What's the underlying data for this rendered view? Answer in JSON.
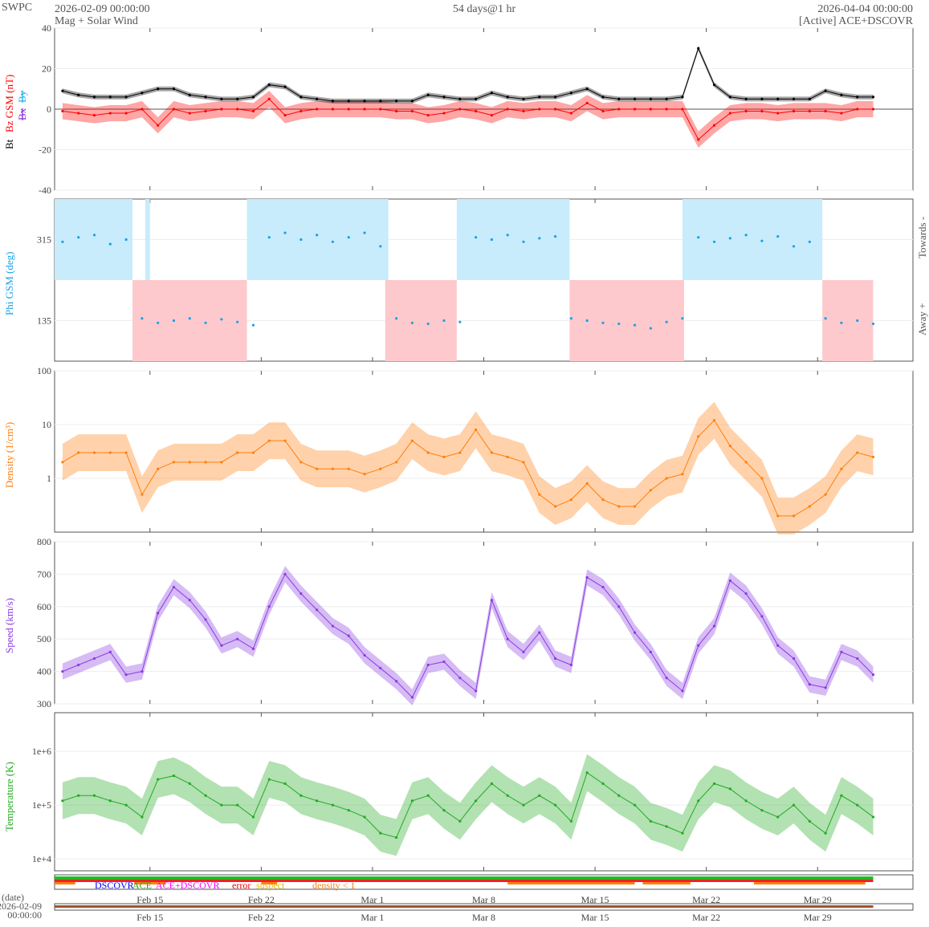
{
  "header": {
    "org": "SWPC",
    "start": "2026-02-09 00:00:00",
    "subtitle": "Mag + Solar Wind",
    "span": "54 days@1 hr",
    "end": "2026-04-04 00:00:00",
    "source": "[Active] ACE+DSCOVR"
  },
  "colors": {
    "bt": "#000000",
    "bz": "#ff0000",
    "bx": "#8a2be2",
    "by": "#1ab2f0",
    "phi": "#1aa0e8",
    "density": "#ff7f0e",
    "speed": "#8a3be2",
    "temp": "#22aa22"
  },
  "labels": {
    "bt": "Bt",
    "bz": "Bz GSM (nT)",
    "bx": "Bx",
    "by": "By",
    "phi": "Phi GSM (deg)",
    "towards": "Towards -",
    "away": "Away +",
    "density": "Density (1/cm³)",
    "speed": "Speed (km/s)",
    "temp": "Temperature (K)",
    "date": "(date)",
    "date_start_day": "2026-02-09",
    "date_start_time": "00:00:00"
  },
  "legend": {
    "dscovr": "DSCOVR",
    "ace": "ACE",
    "both": "ACE+DSCOVR",
    "error": "error",
    "suspect": "suspect",
    "density": "density < 1"
  },
  "chart_data": {
    "type": "line",
    "x_unit": "days since 2026-02-09",
    "x_range": [
      0,
      54
    ],
    "x_ticks": [
      {
        "day": 6,
        "label": "Feb 15"
      },
      {
        "day": 13,
        "label": "Feb 22"
      },
      {
        "day": 20,
        "label": "Mar 1"
      },
      {
        "day": 27,
        "label": "Mar 8"
      },
      {
        "day": 34,
        "label": "Mar 15"
      },
      {
        "day": 41,
        "label": "Mar 22"
      },
      {
        "day": 48,
        "label": "Mar 29"
      }
    ],
    "panels": {
      "mag": {
        "ylim": [
          -40,
          40
        ],
        "yticks": [
          "40",
          "20",
          "0",
          "-20",
          "-40"
        ],
        "ytick_values": [
          40,
          20,
          0,
          -20,
          -40
        ],
        "bt": [
          9,
          7,
          6,
          6,
          6,
          8,
          10,
          10,
          7,
          6,
          5,
          5,
          6,
          12,
          11,
          6,
          5,
          4,
          4,
          4,
          4,
          4,
          4,
          7,
          6,
          5,
          5,
          8,
          6,
          5,
          6,
          6,
          8,
          10,
          6,
          5,
          5,
          5,
          5,
          6,
          30,
          12,
          6,
          5,
          5,
          5,
          5,
          5,
          9,
          7,
          6,
          6
        ],
        "bz": [
          -1,
          -2,
          -3,
          -2,
          -2,
          0,
          -8,
          0,
          -2,
          -1,
          0,
          0,
          -1,
          5,
          -3,
          -1,
          0,
          0,
          0,
          0,
          0,
          -1,
          -1,
          -3,
          -2,
          0,
          -1,
          -3,
          0,
          -1,
          0,
          0,
          -2,
          3,
          -1,
          0,
          0,
          0,
          0,
          0,
          -15,
          -8,
          -2,
          -1,
          -1,
          -2,
          -1,
          -1,
          -1,
          -2,
          0,
          0
        ]
      },
      "phi": {
        "ylim": [
          45,
          405
        ],
        "yticks": [
          "315",
          "135"
        ],
        "ytick_values": [
          315,
          135
        ],
        "towards_sectors": [
          [
            0,
            4.9
          ],
          [
            5.7,
            6.0
          ],
          [
            12.1,
            21.0
          ],
          [
            25.3,
            32.4
          ],
          [
            39.5,
            48.3
          ]
        ],
        "away_sectors": [
          [
            4.9,
            12.1
          ],
          [
            20.8,
            25.3
          ],
          [
            32.4,
            39.6
          ],
          [
            48.3,
            51.5
          ]
        ],
        "values": [
          310,
          320,
          325,
          305,
          315,
          140,
          130,
          135,
          140,
          130,
          138,
          132,
          125,
          320,
          330,
          315,
          325,
          310,
          320,
          330,
          300,
          140,
          130,
          128,
          135,
          132,
          320,
          315,
          325,
          310,
          318,
          322,
          140,
          135,
          130,
          128,
          125,
          118,
          132,
          140,
          320,
          310,
          318,
          325,
          312,
          322,
          300,
          310,
          140,
          130,
          135,
          128
        ]
      },
      "density": {
        "scale": "log",
        "ylim": [
          0.1,
          100
        ],
        "yticks": [
          "100",
          "10",
          "1"
        ],
        "ytick_values": [
          100,
          10,
          1
        ],
        "values": [
          2,
          3,
          3,
          3,
          3,
          0.5,
          1.5,
          2,
          2,
          2,
          2,
          3,
          3,
          5,
          5,
          2,
          1.5,
          1.5,
          1.5,
          1.2,
          1.5,
          2,
          5,
          3,
          2.5,
          3,
          8,
          3,
          2.5,
          2,
          0.5,
          0.3,
          0.4,
          0.8,
          0.4,
          0.3,
          0.3,
          0.6,
          1,
          1.2,
          6,
          12,
          4,
          2,
          1,
          0.2,
          0.2,
          0.3,
          0.5,
          1.5,
          3,
          2.5
        ]
      },
      "speed": {
        "ylim": [
          300,
          800
        ],
        "yticks": [
          "800",
          "700",
          "600",
          "500",
          "400",
          "300"
        ],
        "ytick_values": [
          800,
          700,
          600,
          500,
          400,
          300
        ],
        "values": [
          400,
          420,
          440,
          460,
          390,
          400,
          580,
          660,
          620,
          560,
          480,
          500,
          470,
          600,
          700,
          640,
          590,
          540,
          510,
          450,
          410,
          370,
          320,
          420,
          430,
          380,
          340,
          620,
          500,
          460,
          520,
          440,
          420,
          690,
          660,
          600,
          520,
          460,
          380,
          340,
          480,
          540,
          680,
          640,
          570,
          480,
          440,
          360,
          350,
          460,
          440,
          390
        ]
      },
      "temp": {
        "scale": "log",
        "ylim": [
          6000,
          5200000
        ],
        "yticks": [
          "1e+6",
          "1e+5",
          "1e+4"
        ],
        "ytick_values": [
          1000000,
          100000,
          10000
        ],
        "values": [
          120000,
          150000,
          150000,
          120000,
          100000,
          60000,
          300000,
          350000,
          250000,
          150000,
          100000,
          100000,
          60000,
          300000,
          250000,
          150000,
          120000,
          100000,
          80000,
          60000,
          30000,
          25000,
          120000,
          150000,
          80000,
          50000,
          120000,
          250000,
          150000,
          100000,
          150000,
          100000,
          50000,
          400000,
          250000,
          150000,
          100000,
          50000,
          40000,
          30000,
          120000,
          250000,
          200000,
          120000,
          80000,
          60000,
          100000,
          50000,
          30000,
          150000,
          100000,
          60000
        ]
      }
    }
  }
}
